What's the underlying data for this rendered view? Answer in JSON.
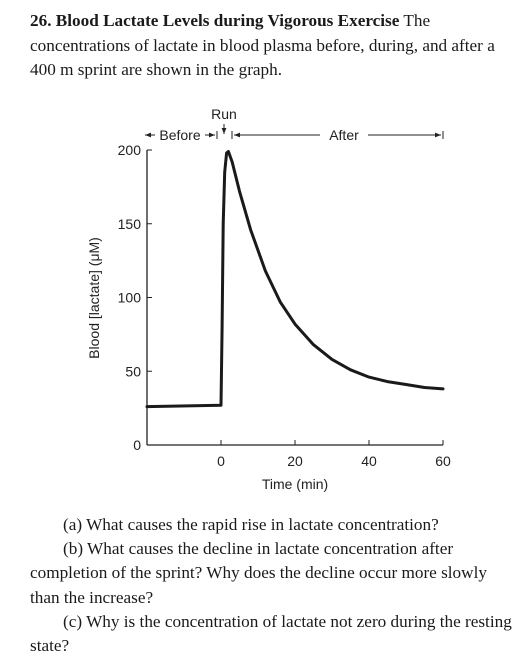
{
  "problem": {
    "number": "26.",
    "title": "Blood Lactate Levels during Vigorous Exercise",
    "text": "The concentrations of lactate in blood plasma before, during, and after a 400 m sprint are shown in the graph."
  },
  "chart_data": {
    "type": "line",
    "xlabel": "Time (min)",
    "ylabel": "Blood [lactate] (μM)",
    "xlim": [
      -20,
      60
    ],
    "ylim": [
      0,
      200
    ],
    "x_ticks": [
      "0",
      "20",
      "40",
      "60"
    ],
    "y_ticks": [
      "0",
      "50",
      "100",
      "150",
      "200"
    ],
    "phase_labels": {
      "before": "Before",
      "run": "Run",
      "after": "After"
    },
    "series": [
      {
        "x": [
          -20,
          0,
          0.3,
          0.6,
          1,
          1.5,
          2,
          3,
          5,
          8,
          12,
          16,
          20,
          25,
          30,
          35,
          40,
          45,
          50,
          55,
          60
        ],
        "values": [
          26,
          27,
          80,
          150,
          185,
          198,
          199,
          192,
          172,
          146,
          118,
          97,
          82,
          68,
          58,
          51,
          46,
          43,
          41,
          39,
          38
        ]
      }
    ],
    "grid": false
  },
  "questions": [
    {
      "label": "(a)",
      "text": "What causes the rapid rise in lactate concentration?"
    },
    {
      "label": "(b)",
      "text": "What causes the decline in lactate concentration after completion of the sprint? Why does the decline occur more slowly than the increase?"
    },
    {
      "label": "(c)",
      "text": "Why is the concentration of lactate not zero during the resting state?"
    }
  ]
}
